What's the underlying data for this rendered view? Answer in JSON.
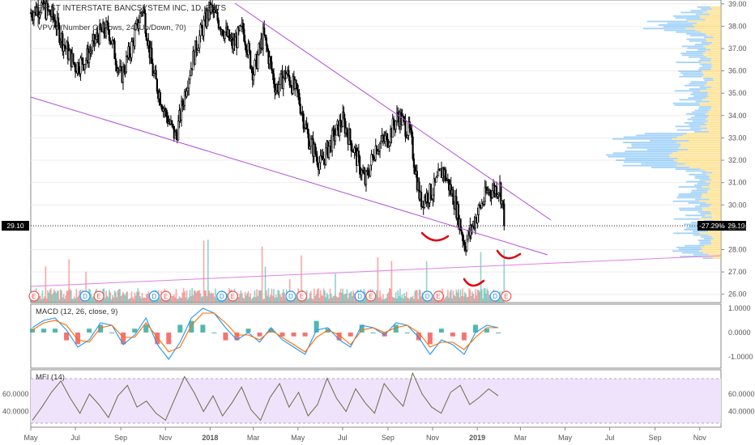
{
  "header": {
    "title": "FIRST INTERSTATE BANCSYSTEM INC, 1D, BATS",
    "vpvr_label": "VPVR (Number Of Rows, 24, Up/Down, 70)"
  },
  "colors": {
    "candle": "#000000",
    "trendline": "#b24cd6",
    "lower_trendline": "#e07fe6",
    "vol_up": "#26a69a",
    "vol_down": "#ef5350",
    "macd_line": "#2196f3",
    "signal_line": "#ff6d00",
    "hist_pos": "#26a69a",
    "hist_neg": "#ef5350",
    "mfi_line": "#6b6b4a",
    "mfi_band": "#efe3fb",
    "vpvr_up": "#64b5f6",
    "vpvr_down": "#ffd666",
    "annotation": "#e0000d",
    "price_badge": "#000000",
    "event_d": "#2196f3",
    "event_e": "#ef5350"
  },
  "price_badge": {
    "value": "29.10",
    "change": "-27.29%"
  },
  "chart_data": [
    {
      "type": "candlestick",
      "panel": "price",
      "y_ticks": [
        "39.00",
        "38.00",
        "37.00",
        "36.00",
        "35.00",
        "34.00",
        "33.00",
        "32.00",
        "31.00",
        "30.00",
        "29.00",
        "28.00",
        "27.00",
        "26.00"
      ],
      "ylim": [
        25.7,
        39.1
      ],
      "x_ticks": [
        "May",
        "Jul",
        "Sep",
        "Nov",
        "2018",
        "Mar",
        "May",
        "Jul",
        "Sep",
        "Nov",
        "2019",
        "Mar",
        "May",
        "Jul",
        "Sep",
        "Nov"
      ],
      "approx_close_path": [
        [
          "2017-05-01",
          38.6
        ],
        [
          "2017-05-15",
          38.9
        ],
        [
          "2017-06-01",
          38.4
        ],
        [
          "2017-06-15",
          37.2
        ],
        [
          "2017-07-01",
          36.2
        ],
        [
          "2017-07-15",
          36.5
        ],
        [
          "2017-08-01",
          37.6
        ],
        [
          "2017-08-15",
          37.9
        ],
        [
          "2017-09-01",
          35.7
        ],
        [
          "2017-09-15",
          37.0
        ],
        [
          "2017-10-01",
          38.9
        ],
        [
          "2017-10-15",
          35.9
        ],
        [
          "2017-11-01",
          34.1
        ],
        [
          "2017-11-15",
          33.0
        ],
        [
          "2017-12-01",
          35.6
        ],
        [
          "2017-12-15",
          37.3
        ],
        [
          "2018-01-01",
          38.8
        ],
        [
          "2018-01-15",
          38.1
        ],
        [
          "2018-02-01",
          37.1
        ],
        [
          "2018-02-15",
          37.9
        ],
        [
          "2018-03-01",
          35.9
        ],
        [
          "2018-03-15",
          37.6
        ],
        [
          "2018-04-01",
          35.2
        ],
        [
          "2018-04-15",
          35.9
        ],
        [
          "2018-05-01",
          34.9
        ],
        [
          "2018-05-15",
          33.0
        ],
        [
          "2018-06-01",
          31.8
        ],
        [
          "2018-06-15",
          32.8
        ],
        [
          "2018-07-01",
          33.8
        ],
        [
          "2018-07-15",
          32.6
        ],
        [
          "2018-08-01",
          31.0
        ],
        [
          "2018-08-15",
          32.6
        ],
        [
          "2018-09-01",
          33.0
        ],
        [
          "2018-09-15",
          34.0
        ],
        [
          "2018-10-01",
          33.2
        ],
        [
          "2018-10-15",
          30.2
        ],
        [
          "2018-11-01",
          30.6
        ],
        [
          "2018-11-15",
          31.6
        ],
        [
          "2018-12-01",
          30.2
        ],
        [
          "2018-12-15",
          28.2
        ],
        [
          "2019-01-01",
          29.6
        ],
        [
          "2019-01-15",
          30.6
        ],
        [
          "2019-02-01",
          30.8
        ],
        [
          "2019-02-08",
          29.1
        ]
      ]
    },
    {
      "type": "line",
      "panel": "macd",
      "title": "MACD (12, 26, close, 9)",
      "y_ticks": [
        "1.0000",
        "0.0000",
        "-1.0000"
      ],
      "ylim": [
        -1.4,
        1.1
      ],
      "series": [
        {
          "name": "MACD",
          "values": [
            0.2,
            0.5,
            0.6,
            0.1,
            -0.6,
            -0.3,
            0.4,
            0.3,
            -0.5,
            -0.1,
            0.6,
            -0.5,
            -1.1,
            -0.4,
            0.6,
            1.0,
            0.8,
            0.2,
            -0.3,
            0.0,
            -0.4,
            0.2,
            -0.3,
            -0.6,
            -0.9,
            0.1,
            0.2,
            -0.3,
            -0.6,
            0.3,
            0.2,
            -0.1,
            0.4,
            0.3,
            -0.2,
            -0.9,
            -0.3,
            -0.5,
            -0.9,
            0.0,
            0.3,
            0.2
          ]
        },
        {
          "name": "Signal",
          "values": [
            0.1,
            0.4,
            0.5,
            0.3,
            -0.3,
            -0.4,
            0.2,
            0.3,
            -0.2,
            -0.2,
            0.4,
            -0.2,
            -0.8,
            -0.6,
            0.3,
            0.8,
            0.8,
            0.4,
            -0.1,
            -0.1,
            -0.3,
            0.1,
            -0.2,
            -0.5,
            -0.8,
            -0.2,
            0.1,
            -0.1,
            -0.5,
            0.1,
            0.2,
            0.0,
            0.2,
            0.3,
            0.0,
            -0.6,
            -0.4,
            -0.4,
            -0.7,
            -0.2,
            0.2,
            0.2
          ]
        }
      ]
    },
    {
      "type": "line",
      "panel": "mfi",
      "title": "MFI (14)",
      "y_ticks": [
        "60.0000",
        "40.0000"
      ],
      "ylim": [
        22,
        86
      ],
      "series": [
        {
          "name": "MFI",
          "values": [
            30,
            45,
            62,
            75,
            55,
            38,
            60,
            48,
            33,
            58,
            70,
            45,
            52,
            38,
            30,
            55,
            80,
            62,
            40,
            58,
            35,
            50,
            68,
            42,
            30,
            56,
            72,
            45,
            62,
            35,
            48,
            78,
            55,
            40,
            66,
            50,
            38,
            72,
            58,
            46,
            84,
            60,
            45,
            38,
            62,
            70,
            48,
            56,
            66,
            58
          ]
        }
      ]
    }
  ],
  "events": [
    {
      "t": "E",
      "x": 0.0
    },
    {
      "t": "D",
      "x": 0.074
    },
    {
      "t": "E",
      "x": 0.094
    },
    {
      "t": "D",
      "x": 0.174
    },
    {
      "t": "E",
      "x": 0.191
    },
    {
      "t": "D",
      "x": 0.272
    },
    {
      "t": "E",
      "x": 0.288
    },
    {
      "t": "D",
      "x": 0.372
    },
    {
      "t": "E",
      "x": 0.388
    },
    {
      "t": "D",
      "x": 0.472
    },
    {
      "t": "E",
      "x": 0.488
    },
    {
      "t": "D",
      "x": 0.57
    },
    {
      "t": "E",
      "x": 0.586
    },
    {
      "t": "D",
      "x": 0.668
    },
    {
      "t": "E",
      "x": 0.684
    }
  ]
}
